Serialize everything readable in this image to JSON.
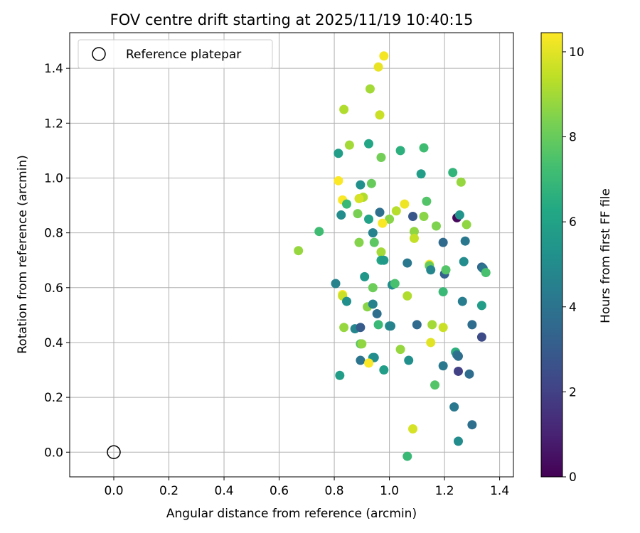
{
  "chart_data": {
    "type": "scatter",
    "title": "FOV centre drift starting at 2025/11/19 10:40:15",
    "xlabel": "Angular distance from reference (arcmin)",
    "ylabel": "Rotation from reference (arcmin)",
    "xlim": [
      -0.16,
      1.45
    ],
    "ylim": [
      -0.09,
      1.53
    ],
    "xticks": [
      0.0,
      0.2,
      0.4,
      0.6,
      0.8,
      1.0,
      1.2,
      1.4
    ],
    "xtick_labels": [
      "0.0",
      "0.2",
      "0.4",
      "0.6",
      "0.8",
      "1.0",
      "1.2",
      "1.4"
    ],
    "yticks": [
      0.0,
      0.2,
      0.4,
      0.6,
      0.8,
      1.0,
      1.2,
      1.4
    ],
    "ytick_labels": [
      "0.0",
      "0.2",
      "0.4",
      "0.6",
      "0.8",
      "1.0",
      "1.2",
      "1.4"
    ],
    "grid": true,
    "legend": {
      "position": "top-left",
      "label": "Reference platepar"
    },
    "reference_point": {
      "x": 0.0,
      "y": 0.0
    },
    "colorbar": {
      "label": "Hours from first FF file",
      "colormap": "viridis",
      "range": [
        0,
        10.45
      ],
      "ticks": [
        0,
        2,
        4,
        6,
        8,
        10
      ],
      "tick_labels": [
        "0",
        "2",
        "4",
        "6",
        "8",
        "10"
      ]
    },
    "points": [
      {
        "x": 0.98,
        "y": 1.445,
        "h": 10.3
      },
      {
        "x": 0.96,
        "y": 1.405,
        "h": 10.1
      },
      {
        "x": 0.93,
        "y": 1.325,
        "h": 9.0
      },
      {
        "x": 0.835,
        "y": 1.25,
        "h": 9.2
      },
      {
        "x": 0.965,
        "y": 1.23,
        "h": 9.6
      },
      {
        "x": 0.855,
        "y": 1.12,
        "h": 9.0
      },
      {
        "x": 0.815,
        "y": 1.09,
        "h": 5.8
      },
      {
        "x": 0.925,
        "y": 1.125,
        "h": 6.2
      },
      {
        "x": 0.97,
        "y": 1.075,
        "h": 8.2
      },
      {
        "x": 1.04,
        "y": 1.1,
        "h": 6.6
      },
      {
        "x": 1.125,
        "y": 1.11,
        "h": 7.2
      },
      {
        "x": 1.23,
        "y": 1.02,
        "h": 6.8
      },
      {
        "x": 1.115,
        "y": 1.015,
        "h": 5.8
      },
      {
        "x": 0.815,
        "y": 0.99,
        "h": 10.4
      },
      {
        "x": 0.895,
        "y": 0.975,
        "h": 5.2
      },
      {
        "x": 0.935,
        "y": 0.98,
        "h": 8.0
      },
      {
        "x": 1.26,
        "y": 0.985,
        "h": 8.8
      },
      {
        "x": 0.905,
        "y": 0.93,
        "h": 9.2
      },
      {
        "x": 0.89,
        "y": 0.925,
        "h": 9.8
      },
      {
        "x": 0.83,
        "y": 0.92,
        "h": 10.4
      },
      {
        "x": 0.845,
        "y": 0.905,
        "h": 7.0
      },
      {
        "x": 1.135,
        "y": 0.915,
        "h": 7.6
      },
      {
        "x": 1.055,
        "y": 0.905,
        "h": 10.2
      },
      {
        "x": 0.825,
        "y": 0.865,
        "h": 5.0
      },
      {
        "x": 0.885,
        "y": 0.87,
        "h": 8.3
      },
      {
        "x": 0.925,
        "y": 0.85,
        "h": 6.0
      },
      {
        "x": 0.965,
        "y": 0.875,
        "h": 3.8
      },
      {
        "x": 1.0,
        "y": 0.85,
        "h": 8.6
      },
      {
        "x": 1.025,
        "y": 0.88,
        "h": 9.3
      },
      {
        "x": 1.085,
        "y": 0.86,
        "h": 2.8
      },
      {
        "x": 1.125,
        "y": 0.86,
        "h": 8.6
      },
      {
        "x": 1.245,
        "y": 0.855,
        "h": 0.2
      },
      {
        "x": 1.255,
        "y": 0.865,
        "h": 5.4
      },
      {
        "x": 0.975,
        "y": 0.835,
        "h": 10.4
      },
      {
        "x": 1.17,
        "y": 0.825,
        "h": 8.4
      },
      {
        "x": 1.28,
        "y": 0.83,
        "h": 8.7
      },
      {
        "x": 0.745,
        "y": 0.805,
        "h": 7.2
      },
      {
        "x": 0.94,
        "y": 0.8,
        "h": 4.6
      },
      {
        "x": 1.09,
        "y": 0.805,
        "h": 8.7
      },
      {
        "x": 0.67,
        "y": 0.735,
        "h": 8.8
      },
      {
        "x": 0.89,
        "y": 0.765,
        "h": 8.5
      },
      {
        "x": 0.945,
        "y": 0.765,
        "h": 7.8
      },
      {
        "x": 1.09,
        "y": 0.78,
        "h": 9.5
      },
      {
        "x": 1.195,
        "y": 0.765,
        "h": 3.6
      },
      {
        "x": 1.275,
        "y": 0.77,
        "h": 4.2
      },
      {
        "x": 0.97,
        "y": 0.73,
        "h": 9.0
      },
      {
        "x": 0.97,
        "y": 0.7,
        "h": 6.1
      },
      {
        "x": 0.98,
        "y": 0.7,
        "h": 5.6
      },
      {
        "x": 1.065,
        "y": 0.69,
        "h": 4.2
      },
      {
        "x": 1.145,
        "y": 0.685,
        "h": 10.4
      },
      {
        "x": 1.145,
        "y": 0.68,
        "h": 8.0
      },
      {
        "x": 1.15,
        "y": 0.665,
        "h": 4.8
      },
      {
        "x": 1.2,
        "y": 0.65,
        "h": 3.2
      },
      {
        "x": 1.205,
        "y": 0.665,
        "h": 7.6
      },
      {
        "x": 1.27,
        "y": 0.695,
        "h": 5.0
      },
      {
        "x": 1.335,
        "y": 0.675,
        "h": 3.4
      },
      {
        "x": 1.34,
        "y": 0.67,
        "h": 4.0
      },
      {
        "x": 1.35,
        "y": 0.655,
        "h": 7.4
      },
      {
        "x": 0.91,
        "y": 0.64,
        "h": 5.5
      },
      {
        "x": 0.805,
        "y": 0.615,
        "h": 4.6
      },
      {
        "x": 0.94,
        "y": 0.6,
        "h": 8.1
      },
      {
        "x": 1.01,
        "y": 0.61,
        "h": 5.0
      },
      {
        "x": 1.02,
        "y": 0.615,
        "h": 7.4
      },
      {
        "x": 1.195,
        "y": 0.585,
        "h": 7.0
      },
      {
        "x": 0.83,
        "y": 0.575,
        "h": 10.4
      },
      {
        "x": 0.83,
        "y": 0.57,
        "h": 9.6
      },
      {
        "x": 1.065,
        "y": 0.57,
        "h": 9.2
      },
      {
        "x": 0.845,
        "y": 0.55,
        "h": 5.2
      },
      {
        "x": 0.92,
        "y": 0.53,
        "h": 8.6
      },
      {
        "x": 0.94,
        "y": 0.54,
        "h": 4.6
      },
      {
        "x": 0.955,
        "y": 0.505,
        "h": 3.8
      },
      {
        "x": 1.265,
        "y": 0.55,
        "h": 4.4
      },
      {
        "x": 1.335,
        "y": 0.535,
        "h": 5.8
      },
      {
        "x": 0.835,
        "y": 0.455,
        "h": 8.8
      },
      {
        "x": 0.875,
        "y": 0.45,
        "h": 4.8
      },
      {
        "x": 0.895,
        "y": 0.455,
        "h": 3.0
      },
      {
        "x": 0.96,
        "y": 0.465,
        "h": 7.0
      },
      {
        "x": 1.0,
        "y": 0.46,
        "h": 5.2
      },
      {
        "x": 1.005,
        "y": 0.46,
        "h": 4.6
      },
      {
        "x": 1.1,
        "y": 0.465,
        "h": 3.6
      },
      {
        "x": 1.155,
        "y": 0.465,
        "h": 9.0
      },
      {
        "x": 1.195,
        "y": 0.455,
        "h": 9.6
      },
      {
        "x": 1.3,
        "y": 0.465,
        "h": 3.7
      },
      {
        "x": 1.335,
        "y": 0.42,
        "h": 2.4
      },
      {
        "x": 0.895,
        "y": 0.395,
        "h": 7.6
      },
      {
        "x": 0.9,
        "y": 0.395,
        "h": 8.7
      },
      {
        "x": 1.04,
        "y": 0.375,
        "h": 8.8
      },
      {
        "x": 1.15,
        "y": 0.4,
        "h": 10.0
      },
      {
        "x": 1.24,
        "y": 0.365,
        "h": 6.6
      },
      {
        "x": 1.245,
        "y": 0.355,
        "h": 4.2
      },
      {
        "x": 1.25,
        "y": 0.35,
        "h": 3.8
      },
      {
        "x": 0.895,
        "y": 0.335,
        "h": 4.0
      },
      {
        "x": 0.94,
        "y": 0.345,
        "h": 5.6
      },
      {
        "x": 0.945,
        "y": 0.345,
        "h": 5.0
      },
      {
        "x": 0.925,
        "y": 0.325,
        "h": 10.4
      },
      {
        "x": 1.07,
        "y": 0.335,
        "h": 5.2
      },
      {
        "x": 0.98,
        "y": 0.3,
        "h": 5.8
      },
      {
        "x": 1.195,
        "y": 0.315,
        "h": 4.2
      },
      {
        "x": 1.25,
        "y": 0.295,
        "h": 2.0
      },
      {
        "x": 1.29,
        "y": 0.285,
        "h": 3.7
      },
      {
        "x": 0.82,
        "y": 0.28,
        "h": 5.8
      },
      {
        "x": 1.165,
        "y": 0.245,
        "h": 7.6
      },
      {
        "x": 1.235,
        "y": 0.165,
        "h": 4.2
      },
      {
        "x": 1.3,
        "y": 0.1,
        "h": 3.8
      },
      {
        "x": 1.085,
        "y": 0.085,
        "h": 9.8
      },
      {
        "x": 1.25,
        "y": 0.04,
        "h": 5.0
      },
      {
        "x": 1.065,
        "y": -0.015,
        "h": 7.0
      }
    ]
  }
}
